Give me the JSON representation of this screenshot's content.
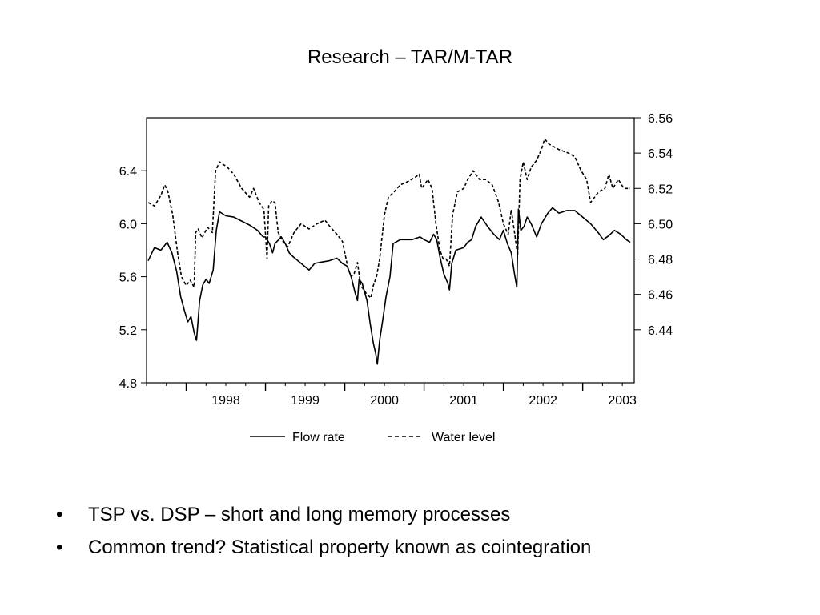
{
  "slide": {
    "title": "Research – TAR/M-TAR",
    "bullets": [
      "TSP vs. DSP – short and long memory processes",
      "Common trend?  Statistical property known as cointegration"
    ],
    "bullet_glyph": "•"
  },
  "chart_data": {
    "type": "line",
    "title": "",
    "x_tick_labels": [
      "1998",
      "1999",
      "2000",
      "2001",
      "2002",
      "2003"
    ],
    "xlim": [
      1997.5,
      2003.65
    ],
    "y_left": {
      "ticks": [
        4.8,
        5.2,
        5.6,
        6.0,
        6.4
      ],
      "tick_labels": [
        "4.8",
        "5.2",
        "5.6",
        "6.0",
        "6.4"
      ],
      "ylim": [
        4.8,
        6.8
      ]
    },
    "y_right": {
      "ticks": [
        6.44,
        6.46,
        6.48,
        6.5,
        6.52,
        6.54,
        6.56
      ],
      "tick_labels": [
        "6.44",
        "6.46",
        "6.48",
        "6.50",
        "6.52",
        "6.54",
        "6.56"
      ],
      "ylim": [
        6.41,
        6.56
      ]
    },
    "legend_placement": "bottom",
    "series": [
      {
        "name": "Flow rate",
        "axis": "left",
        "style": "solid",
        "color": "#000000",
        "points": [
          [
            1997.52,
            5.72
          ],
          [
            1997.6,
            5.82
          ],
          [
            1997.68,
            5.8
          ],
          [
            1997.76,
            5.86
          ],
          [
            1997.82,
            5.78
          ],
          [
            1997.88,
            5.64
          ],
          [
            1997.93,
            5.45
          ],
          [
            1997.98,
            5.34
          ],
          [
            1998.02,
            5.26
          ],
          [
            1998.06,
            5.3
          ],
          [
            1998.1,
            5.18
          ],
          [
            1998.13,
            5.12
          ],
          [
            1998.17,
            5.42
          ],
          [
            1998.21,
            5.54
          ],
          [
            1998.25,
            5.58
          ],
          [
            1998.29,
            5.55
          ],
          [
            1998.34,
            5.65
          ],
          [
            1998.38,
            5.95
          ],
          [
            1998.42,
            6.09
          ],
          [
            1998.5,
            6.06
          ],
          [
            1998.6,
            6.05
          ],
          [
            1998.7,
            6.02
          ],
          [
            1998.8,
            5.99
          ],
          [
            1998.9,
            5.95
          ],
          [
            1998.97,
            5.9
          ],
          [
            1999.0,
            5.9
          ],
          [
            1999.05,
            5.85
          ],
          [
            1999.09,
            5.78
          ],
          [
            1999.12,
            5.85
          ],
          [
            1999.2,
            5.9
          ],
          [
            1999.25,
            5.85
          ],
          [
            1999.3,
            5.78
          ],
          [
            1999.35,
            5.75
          ],
          [
            1999.45,
            5.7
          ],
          [
            1999.55,
            5.65
          ],
          [
            1999.62,
            5.7
          ],
          [
            1999.7,
            5.71
          ],
          [
            1999.8,
            5.72
          ],
          [
            1999.9,
            5.74
          ],
          [
            1999.97,
            5.7
          ],
          [
            2000.03,
            5.68
          ],
          [
            2000.08,
            5.6
          ],
          [
            2000.13,
            5.48
          ],
          [
            2000.16,
            5.42
          ],
          [
            2000.18,
            5.58
          ],
          [
            2000.22,
            5.55
          ],
          [
            2000.28,
            5.42
          ],
          [
            2000.32,
            5.25
          ],
          [
            2000.36,
            5.1
          ],
          [
            2000.39,
            5.02
          ],
          [
            2000.41,
            4.94
          ],
          [
            2000.44,
            5.12
          ],
          [
            2000.48,
            5.28
          ],
          [
            2000.52,
            5.45
          ],
          [
            2000.57,
            5.6
          ],
          [
            2000.61,
            5.85
          ],
          [
            2000.7,
            5.88
          ],
          [
            2000.85,
            5.88
          ],
          [
            2000.95,
            5.9
          ],
          [
            2001.0,
            5.88
          ],
          [
            2001.07,
            5.86
          ],
          [
            2001.12,
            5.92
          ],
          [
            2001.16,
            5.88
          ],
          [
            2001.2,
            5.75
          ],
          [
            2001.25,
            5.62
          ],
          [
            2001.3,
            5.55
          ],
          [
            2001.32,
            5.5
          ],
          [
            2001.35,
            5.7
          ],
          [
            2001.4,
            5.8
          ],
          [
            2001.5,
            5.82
          ],
          [
            2001.55,
            5.86
          ],
          [
            2001.6,
            5.88
          ],
          [
            2001.65,
            5.98
          ],
          [
            2001.72,
            6.05
          ],
          [
            2001.8,
            5.98
          ],
          [
            2001.88,
            5.92
          ],
          [
            2001.95,
            5.88
          ],
          [
            2002.0,
            5.95
          ],
          [
            2002.05,
            5.85
          ],
          [
            2002.1,
            5.78
          ],
          [
            2002.14,
            5.62
          ],
          [
            2002.17,
            5.52
          ],
          [
            2002.19,
            6.11
          ],
          [
            2002.22,
            5.95
          ],
          [
            2002.26,
            5.98
          ],
          [
            2002.3,
            6.05
          ],
          [
            2002.35,
            6.0
          ],
          [
            2002.42,
            5.9
          ],
          [
            2002.48,
            6.0
          ],
          [
            2002.56,
            6.08
          ],
          [
            2002.62,
            6.12
          ],
          [
            2002.7,
            6.08
          ],
          [
            2002.8,
            6.1
          ],
          [
            2002.9,
            6.1
          ],
          [
            2003.0,
            6.05
          ],
          [
            2003.1,
            6.0
          ],
          [
            2003.2,
            5.93
          ],
          [
            2003.26,
            5.88
          ],
          [
            2003.33,
            5.91
          ],
          [
            2003.4,
            5.95
          ],
          [
            2003.48,
            5.92
          ],
          [
            2003.55,
            5.88
          ],
          [
            2003.6,
            5.86
          ]
        ]
      },
      {
        "name": "Water level",
        "axis": "right",
        "style": "dashed",
        "color": "#000000",
        "points": [
          [
            1997.52,
            6.512
          ],
          [
            1997.6,
            6.51
          ],
          [
            1997.68,
            6.516
          ],
          [
            1997.73,
            6.522
          ],
          [
            1997.77,
            6.518
          ],
          [
            1997.83,
            6.505
          ],
          [
            1997.89,
            6.484
          ],
          [
            1997.94,
            6.47
          ],
          [
            1998.0,
            6.465
          ],
          [
            1998.05,
            6.468
          ],
          [
            1998.1,
            6.464
          ],
          [
            1998.12,
            6.495
          ],
          [
            1998.15,
            6.497
          ],
          [
            1998.2,
            6.492
          ],
          [
            1998.27,
            6.498
          ],
          [
            1998.33,
            6.495
          ],
          [
            1998.37,
            6.53
          ],
          [
            1998.42,
            6.535
          ],
          [
            1998.52,
            6.532
          ],
          [
            1998.6,
            6.528
          ],
          [
            1998.7,
            6.52
          ],
          [
            1998.8,
            6.515
          ],
          [
            1998.85,
            6.52
          ],
          [
            1998.92,
            6.512
          ],
          [
            1998.98,
            6.508
          ],
          [
            1999.02,
            6.48
          ],
          [
            1999.04,
            6.51
          ],
          [
            1999.08,
            6.513
          ],
          [
            1999.12,
            6.512
          ],
          [
            1999.16,
            6.495
          ],
          [
            1999.22,
            6.49
          ],
          [
            1999.28,
            6.487
          ],
          [
            1999.36,
            6.495
          ],
          [
            1999.45,
            6.5
          ],
          [
            1999.55,
            6.497
          ],
          [
            1999.65,
            6.5
          ],
          [
            1999.75,
            6.502
          ],
          [
            1999.82,
            6.498
          ],
          [
            1999.9,
            6.494
          ],
          [
            1999.97,
            6.49
          ],
          [
            2000.04,
            6.475
          ],
          [
            2000.08,
            6.47
          ],
          [
            2000.12,
            6.472
          ],
          [
            2000.16,
            6.478
          ],
          [
            2000.2,
            6.465
          ],
          [
            2000.28,
            6.46
          ],
          [
            2000.33,
            6.458
          ],
          [
            2000.36,
            6.465
          ],
          [
            2000.4,
            6.47
          ],
          [
            2000.44,
            6.48
          ],
          [
            2000.5,
            6.505
          ],
          [
            2000.55,
            6.515
          ],
          [
            2000.62,
            6.518
          ],
          [
            2000.7,
            6.522
          ],
          [
            2000.8,
            6.524
          ],
          [
            2000.88,
            6.526
          ],
          [
            2000.94,
            6.528
          ],
          [
            2000.97,
            6.52
          ],
          [
            2001.05,
            6.525
          ],
          [
            2001.1,
            6.52
          ],
          [
            2001.15,
            6.5
          ],
          [
            2001.2,
            6.485
          ],
          [
            2001.24,
            6.48
          ],
          [
            2001.28,
            6.48
          ],
          [
            2001.32,
            6.476
          ],
          [
            2001.36,
            6.505
          ],
          [
            2001.42,
            6.518
          ],
          [
            2001.5,
            6.52
          ],
          [
            2001.55,
            6.525
          ],
          [
            2001.62,
            6.53
          ],
          [
            2001.7,
            6.525
          ],
          [
            2001.78,
            6.525
          ],
          [
            2001.86,
            6.522
          ],
          [
            2001.94,
            6.512
          ],
          [
            2002.0,
            6.5
          ],
          [
            2002.06,
            6.494
          ],
          [
            2002.1,
            6.508
          ],
          [
            2002.14,
            6.495
          ],
          [
            2002.18,
            6.482
          ],
          [
            2002.21,
            6.525
          ],
          [
            2002.25,
            6.535
          ],
          [
            2002.3,
            6.525
          ],
          [
            2002.35,
            6.532
          ],
          [
            2002.42,
            6.536
          ],
          [
            2002.48,
            6.542
          ],
          [
            2002.52,
            6.548
          ],
          [
            2002.58,
            6.545
          ],
          [
            2002.7,
            6.542
          ],
          [
            2002.82,
            6.54
          ],
          [
            2002.9,
            6.538
          ],
          [
            2002.98,
            6.53
          ],
          [
            2003.05,
            6.525
          ],
          [
            2003.1,
            6.512
          ],
          [
            2003.15,
            6.515
          ],
          [
            2003.2,
            6.518
          ],
          [
            2003.28,
            6.52
          ],
          [
            2003.33,
            6.528
          ],
          [
            2003.38,
            6.52
          ],
          [
            2003.45,
            6.525
          ],
          [
            2003.52,
            6.52
          ],
          [
            2003.6,
            6.52
          ]
        ]
      }
    ]
  }
}
